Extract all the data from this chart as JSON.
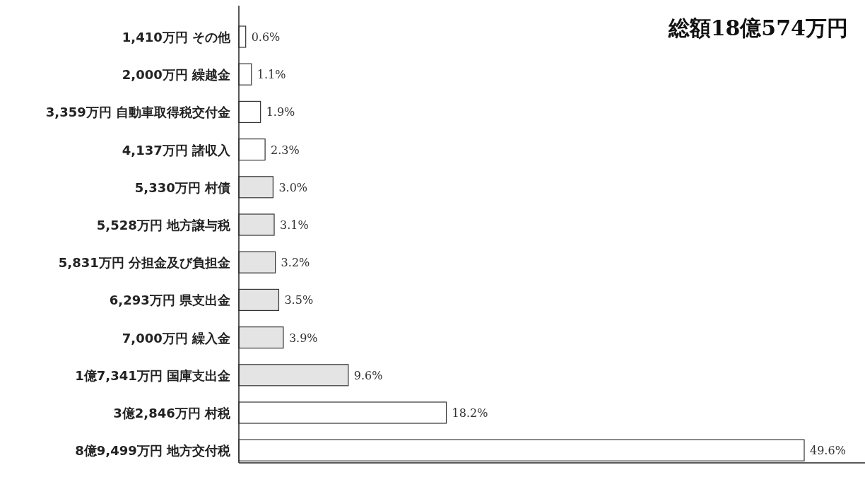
{
  "chart_data": {
    "type": "bar",
    "orientation": "horizontal",
    "title": "総額18億574万円",
    "categories": [
      "1,410万円 その他",
      "2,000万円 繰越金",
      "3,359万円 自動車取得税交付金",
      "4,137万円 諸収入",
      "5,330万円 村債",
      "5,528万円 地方譲与税",
      "5,831万円 分担金及び負担金",
      "6,293万円 県支出金",
      "7,000万円 繰入金",
      "1億7,341万円 国庫支出金",
      "3億2,846万円 村税",
      "8億9,499万円 地方交付税"
    ],
    "values": [
      0.6,
      1.1,
      1.9,
      2.3,
      3.0,
      3.1,
      3.2,
      3.5,
      3.9,
      9.6,
      18.2,
      49.6
    ],
    "value_labels": [
      "0.6%",
      "1.1%",
      "1.9%",
      "2.3%",
      "3.0%",
      "3.1%",
      "3.2%",
      "3.5%",
      "3.9%",
      "9.6%",
      "18.2%",
      "49.6%"
    ],
    "colors": [
      "#ffffff",
      "#ffffff",
      "#ffffff",
      "#ffffff",
      "#e4e4e4",
      "#e4e4e4",
      "#e4e4e4",
      "#e4e4e4",
      "#e4e4e4",
      "#e4e4e4",
      "#ffffff",
      "#ffffff"
    ]
  }
}
